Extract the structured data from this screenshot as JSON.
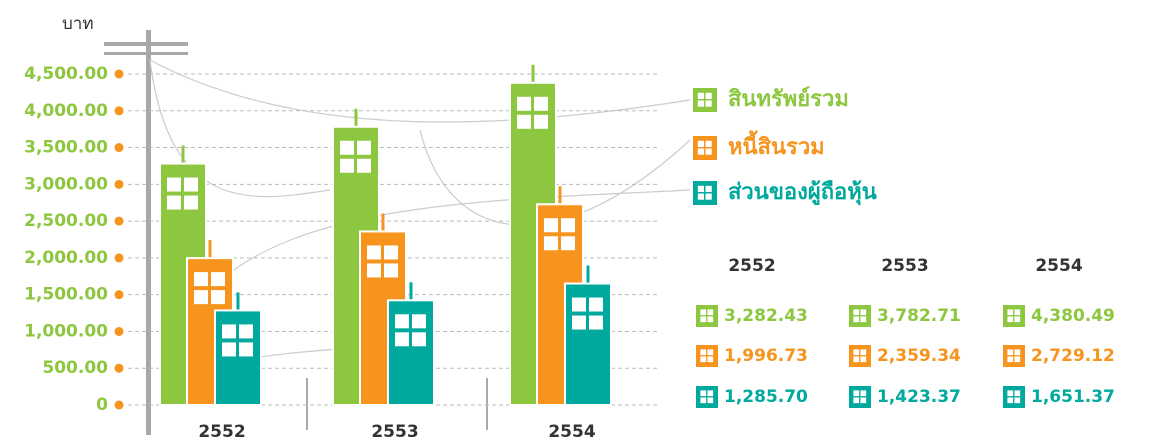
{
  "chart_data": {
    "type": "bar",
    "y_axis_label": "บาท",
    "categories": [
      "2552",
      "2553",
      "2554"
    ],
    "series": [
      {
        "name": "สินทรัพย์รวม",
        "color": "#8dc63f",
        "values": [
          3282.43,
          3782.71,
          4380.49
        ],
        "value_labels": [
          "3,282.43",
          "3,782.71",
          "4,380.49"
        ]
      },
      {
        "name": "หนี้สินรวม",
        "color": "#f7941d",
        "values": [
          1996.73,
          2359.34,
          2729.12
        ],
        "value_labels": [
          "1,996.73",
          "2,359.34",
          "2,729.12"
        ]
      },
      {
        "name": "ส่วนของผู้ถือหุ้น",
        "color": "#00a99d",
        "values": [
          1285.7,
          1423.37,
          1651.37
        ],
        "value_labels": [
          "1,285.70",
          "1,423.37",
          "1,651.37"
        ]
      }
    ],
    "ylim": [
      0,
      4500
    ],
    "yticks": [
      0,
      {
        "value": 500,
        "label": "500.00"
      },
      {
        "value": 1000,
        "label": "1,000.00"
      },
      {
        "value": 1500,
        "label": "1,500.00"
      },
      {
        "value": 2000,
        "label": "2,000.00"
      },
      {
        "value": 2500,
        "label": "2,500.00"
      },
      {
        "value": 3000,
        "label": "3,000.00"
      },
      {
        "value": 3500,
        "label": "3,500.00"
      },
      {
        "value": 4000,
        "label": "4,000.00"
      },
      {
        "value": 4500,
        "label": "4,500.00"
      }
    ],
    "grid": true,
    "tick_color": "#8dc63f",
    "dot_color": "#f7941d"
  }
}
